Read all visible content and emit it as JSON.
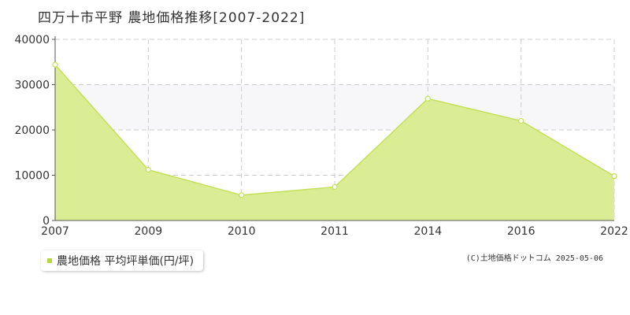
{
  "title": "四万十市平野 農地価格推移[2007-2022]",
  "legend": {
    "label": "農地価格 平均坪単価(円/坪)"
  },
  "credit": "(C)土地価格ドットコム 2025-05-06",
  "colors": {
    "series_fill": "#dbed94",
    "series_line": "#c3e05a",
    "legend_marker": "#b5d943",
    "band": "#f7f7f9",
    "grid": "#cccccc",
    "axis": "#555555",
    "text": "#333333"
  },
  "chart_data": {
    "type": "area",
    "title": "四万十市平野 農地価格推移[2007-2022]",
    "categories": [
      "2007",
      "2009",
      "2010",
      "2011",
      "2014",
      "2016",
      "2022"
    ],
    "series": [
      {
        "name": "農地価格 平均坪単価(円/坪)",
        "values": [
          34400,
          11200,
          5600,
          7400,
          26900,
          22000,
          9800
        ]
      }
    ],
    "y_ticks": [
      "0",
      "10000",
      "20000",
      "30000",
      "40000"
    ],
    "ylim": [
      0,
      40000
    ],
    "grid": true,
    "legend_position": "bottom-left"
  }
}
